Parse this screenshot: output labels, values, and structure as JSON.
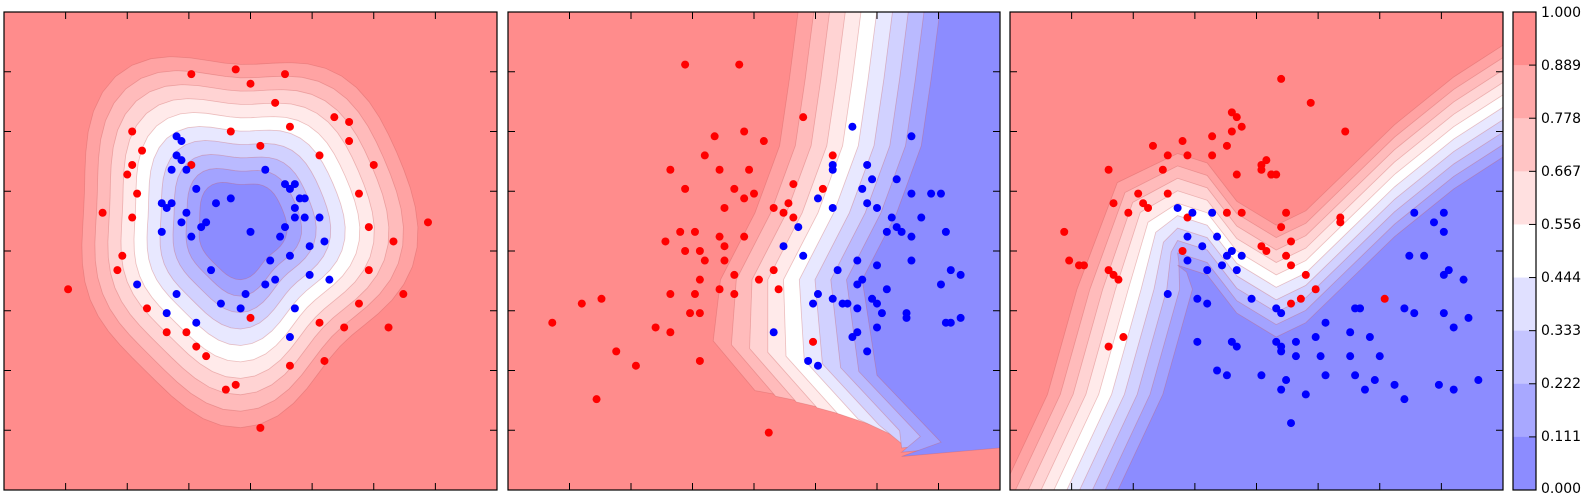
{
  "colors": {
    "class_red": "#ff0000",
    "class_blue": "#0000ff",
    "contour_high": "#ff8c8c",
    "contour_low": "#8c8cff",
    "midpoint": "#ffffff"
  },
  "colorbar": {
    "ticks": [
      "1.000",
      "0.889",
      "0.778",
      "0.667",
      "0.556",
      "0.444",
      "0.333",
      "0.222",
      "0.111",
      "0.000"
    ]
  },
  "chart_data": [
    {
      "type": "contour-scatter",
      "title": "",
      "xlabel": "",
      "ylabel": "",
      "xlim": [
        0,
        100
      ],
      "ylim": [
        0,
        100
      ],
      "grid": false,
      "decision_boundary": "ring",
      "boundary_center": [
        48,
        55
      ],
      "boundary_radii": [
        34,
        38
      ],
      "red_points": [
        [
          38,
          87
        ],
        [
          47,
          88
        ],
        [
          50,
          85
        ],
        [
          57,
          87
        ],
        [
          55,
          81
        ],
        [
          26,
          75
        ],
        [
          46,
          75
        ],
        [
          52,
          72
        ],
        [
          58,
          76
        ],
        [
          67,
          78
        ],
        [
          70,
          77
        ],
        [
          70,
          73
        ],
        [
          64,
          70
        ],
        [
          28,
          71
        ],
        [
          26,
          68
        ],
        [
          25,
          66
        ],
        [
          38,
          68
        ],
        [
          75,
          68
        ],
        [
          72,
          62
        ],
        [
          27,
          62
        ],
        [
          20,
          58
        ],
        [
          26,
          57
        ],
        [
          74,
          55
        ],
        [
          86,
          56
        ],
        [
          79,
          52
        ],
        [
          24,
          49
        ],
        [
          23,
          46
        ],
        [
          74,
          46
        ],
        [
          13,
          42
        ],
        [
          81,
          41
        ],
        [
          72,
          39
        ],
        [
          29,
          38
        ],
        [
          33,
          33
        ],
        [
          37,
          33
        ],
        [
          78,
          34
        ],
        [
          64,
          35
        ],
        [
          69,
          34
        ],
        [
          50,
          36
        ],
        [
          39,
          30
        ],
        [
          41,
          28
        ],
        [
          58,
          26
        ],
        [
          65,
          27
        ],
        [
          47,
          22
        ],
        [
          45,
          21
        ],
        [
          52,
          13
        ]
      ],
      "blue_points": [
        [
          35,
          74
        ],
        [
          36,
          73
        ],
        [
          35,
          70
        ],
        [
          36,
          69
        ],
        [
          34,
          67
        ],
        [
          37,
          67
        ],
        [
          39,
          63
        ],
        [
          46,
          61
        ],
        [
          53,
          67
        ],
        [
          57,
          64
        ],
        [
          58,
          63
        ],
        [
          59,
          64
        ],
        [
          60,
          61
        ],
        [
          61,
          61
        ],
        [
          61,
          57
        ],
        [
          32,
          60
        ],
        [
          34,
          60
        ],
        [
          43,
          60
        ],
        [
          33,
          59
        ],
        [
          37,
          58
        ],
        [
          36,
          56
        ],
        [
          59,
          59
        ],
        [
          59,
          57
        ],
        [
          64,
          57
        ],
        [
          41,
          56
        ],
        [
          40,
          55
        ],
        [
          57,
          55
        ],
        [
          50,
          54
        ],
        [
          65,
          52
        ],
        [
          32,
          54
        ],
        [
          38,
          53
        ],
        [
          56,
          53
        ],
        [
          62,
          51
        ],
        [
          58,
          49
        ],
        [
          54,
          48
        ],
        [
          42,
          46
        ],
        [
          62,
          45
        ],
        [
          55,
          44
        ],
        [
          53,
          43
        ],
        [
          66,
          44
        ],
        [
          27,
          43
        ],
        [
          35,
          41
        ],
        [
          49,
          41
        ],
        [
          44,
          39
        ],
        [
          48,
          38
        ],
        [
          33,
          37
        ],
        [
          59,
          38
        ],
        [
          39,
          35
        ],
        [
          58,
          32
        ]
      ]
    },
    {
      "type": "contour-scatter",
      "title": "",
      "xlabel": "",
      "ylabel": "",
      "xlim": [
        0,
        100
      ],
      "ylim": [
        0,
        100
      ],
      "grid": false,
      "decision_boundary": "diagonal",
      "red_points": [
        [
          36,
          89
        ],
        [
          47,
          89
        ],
        [
          60,
          78
        ],
        [
          42,
          74
        ],
        [
          48,
          75
        ],
        [
          52,
          73
        ],
        [
          40,
          70
        ],
        [
          33,
          67
        ],
        [
          43,
          67
        ],
        [
          49,
          67
        ],
        [
          36,
          63
        ],
        [
          46,
          63
        ],
        [
          48,
          61
        ],
        [
          50,
          62
        ],
        [
          44,
          59
        ],
        [
          54,
          59
        ],
        [
          66,
          70
        ],
        [
          64,
          63
        ],
        [
          58,
          64
        ],
        [
          57,
          60
        ],
        [
          56,
          58
        ],
        [
          35,
          54
        ],
        [
          38,
          54
        ],
        [
          43,
          53
        ],
        [
          32,
          52
        ],
        [
          36,
          50
        ],
        [
          39,
          50
        ],
        [
          40,
          48
        ],
        [
          44,
          48
        ],
        [
          44,
          51
        ],
        [
          48,
          53
        ],
        [
          58,
          57
        ],
        [
          54,
          46
        ],
        [
          46,
          45
        ],
        [
          51,
          44
        ],
        [
          55,
          42
        ],
        [
          39,
          44
        ],
        [
          33,
          41
        ],
        [
          38,
          41
        ],
        [
          43,
          42
        ],
        [
          46,
          41
        ],
        [
          37,
          37
        ],
        [
          33,
          33
        ],
        [
          30,
          34
        ],
        [
          39,
          37
        ],
        [
          19,
          40
        ],
        [
          15,
          39
        ],
        [
          9,
          35
        ],
        [
          22,
          29
        ],
        [
          26,
          26
        ],
        [
          18,
          19
        ],
        [
          39,
          27
        ],
        [
          62,
          31
        ],
        [
          53,
          12
        ]
      ],
      "blue_points": [
        [
          70,
          76
        ],
        [
          82,
          74
        ],
        [
          66,
          68
        ],
        [
          73,
          68
        ],
        [
          66,
          67
        ],
        [
          74,
          65
        ],
        [
          79,
          65
        ],
        [
          72,
          63
        ],
        [
          82,
          62
        ],
        [
          86,
          62
        ],
        [
          88,
          62
        ],
        [
          63,
          61
        ],
        [
          66,
          59
        ],
        [
          73,
          60
        ],
        [
          75,
          59
        ],
        [
          78,
          57
        ],
        [
          79,
          55
        ],
        [
          84,
          57
        ],
        [
          77,
          54
        ],
        [
          80,
          54
        ],
        [
          82,
          53
        ],
        [
          89,
          54
        ],
        [
          59,
          55
        ],
        [
          56,
          51
        ],
        [
          60,
          49
        ],
        [
          71,
          48
        ],
        [
          67,
          46
        ],
        [
          82,
          48
        ],
        [
          75,
          47
        ],
        [
          72,
          44
        ],
        [
          71,
          43
        ],
        [
          77,
          42
        ],
        [
          90,
          46
        ],
        [
          92,
          45
        ],
        [
          88,
          43
        ],
        [
          63,
          41
        ],
        [
          66,
          40
        ],
        [
          62,
          39
        ],
        [
          68,
          39
        ],
        [
          69,
          39
        ],
        [
          74,
          40
        ],
        [
          75,
          39
        ],
        [
          71,
          38
        ],
        [
          76,
          37
        ],
        [
          81,
          37
        ],
        [
          81,
          36
        ],
        [
          89,
          35
        ],
        [
          92,
          36
        ],
        [
          90,
          35
        ],
        [
          75,
          34
        ],
        [
          71,
          33
        ],
        [
          70,
          32
        ],
        [
          54,
          33
        ],
        [
          61,
          27
        ],
        [
          63,
          26
        ],
        [
          73,
          29
        ]
      ]
    },
    {
      "type": "contour-scatter",
      "title": "",
      "xlabel": "",
      "ylabel": "",
      "xlim": [
        0,
        100
      ],
      "ylim": [
        0,
        100
      ],
      "grid": false,
      "decision_boundary": "moons",
      "red_points": [
        [
          55,
          86
        ],
        [
          61,
          81
        ],
        [
          45,
          79
        ],
        [
          46,
          78
        ],
        [
          47,
          76
        ],
        [
          45,
          75
        ],
        [
          68,
          75
        ],
        [
          41,
          74
        ],
        [
          44,
          72
        ],
        [
          35,
          73
        ],
        [
          29,
          72
        ],
        [
          32,
          70
        ],
        [
          31,
          67
        ],
        [
          20,
          67
        ],
        [
          36,
          70
        ],
        [
          41,
          70
        ],
        [
          52,
          69
        ],
        [
          51,
          68
        ],
        [
          51,
          67
        ],
        [
          46,
          66
        ],
        [
          53,
          66
        ],
        [
          21,
          60
        ],
        [
          24,
          58
        ],
        [
          27,
          60
        ],
        [
          32,
          62
        ],
        [
          26,
          62
        ],
        [
          28,
          59
        ],
        [
          53,
          66
        ],
        [
          54,
          66
        ],
        [
          47,
          58
        ],
        [
          56,
          58
        ],
        [
          55,
          55
        ],
        [
          51,
          51
        ],
        [
          52,
          50
        ],
        [
          57,
          52
        ],
        [
          56,
          49
        ],
        [
          44,
          58
        ],
        [
          36,
          57
        ],
        [
          67,
          57
        ],
        [
          67,
          56
        ],
        [
          11,
          54
        ],
        [
          12,
          48
        ],
        [
          14,
          47
        ],
        [
          15,
          47
        ],
        [
          20,
          46
        ],
        [
          21,
          45
        ],
        [
          22,
          44
        ],
        [
          35,
          50
        ],
        [
          23,
          32
        ],
        [
          20,
          30
        ],
        [
          57,
          39
        ],
        [
          57,
          47
        ],
        [
          60,
          45
        ],
        [
          62,
          42
        ],
        [
          59,
          40
        ],
        [
          76,
          40
        ]
      ],
      "blue_points": [
        [
          34,
          59
        ],
        [
          37,
          58
        ],
        [
          41,
          58
        ],
        [
          82,
          58
        ],
        [
          88,
          58
        ],
        [
          86,
          56
        ],
        [
          88,
          54
        ],
        [
          36,
          53
        ],
        [
          42,
          53
        ],
        [
          39,
          51
        ],
        [
          45,
          50
        ],
        [
          44,
          49
        ],
        [
          47,
          49
        ],
        [
          36,
          48
        ],
        [
          40,
          46
        ],
        [
          43,
          47
        ],
        [
          46,
          46
        ],
        [
          81,
          49
        ],
        [
          84,
          49
        ],
        [
          89,
          46
        ],
        [
          88,
          45
        ],
        [
          92,
          44
        ],
        [
          32,
          41
        ],
        [
          38,
          40
        ],
        [
          40,
          39
        ],
        [
          49,
          40
        ],
        [
          54,
          38
        ],
        [
          55,
          37
        ],
        [
          70,
          38
        ],
        [
          71,
          38
        ],
        [
          80,
          38
        ],
        [
          82,
          37
        ],
        [
          88,
          37
        ],
        [
          93,
          36
        ],
        [
          90,
          34
        ],
        [
          64,
          35
        ],
        [
          69,
          33
        ],
        [
          38,
          31
        ],
        [
          45,
          31
        ],
        [
          46,
          30
        ],
        [
          54,
          31
        ],
        [
          55,
          30
        ],
        [
          58,
          31
        ],
        [
          62,
          32
        ],
        [
          73,
          32
        ],
        [
          55,
          29
        ],
        [
          58,
          28
        ],
        [
          63,
          28
        ],
        [
          69,
          28
        ],
        [
          75,
          28
        ],
        [
          42,
          25
        ],
        [
          44,
          24
        ],
        [
          51,
          24
        ],
        [
          56,
          23
        ],
        [
          64,
          24
        ],
        [
          70,
          24
        ],
        [
          74,
          23
        ],
        [
          55,
          21
        ],
        [
          60,
          20
        ],
        [
          72,
          21
        ],
        [
          78,
          22
        ],
        [
          87,
          22
        ],
        [
          90,
          21
        ],
        [
          95,
          23
        ],
        [
          80,
          19
        ],
        [
          57,
          14
        ]
      ]
    }
  ]
}
